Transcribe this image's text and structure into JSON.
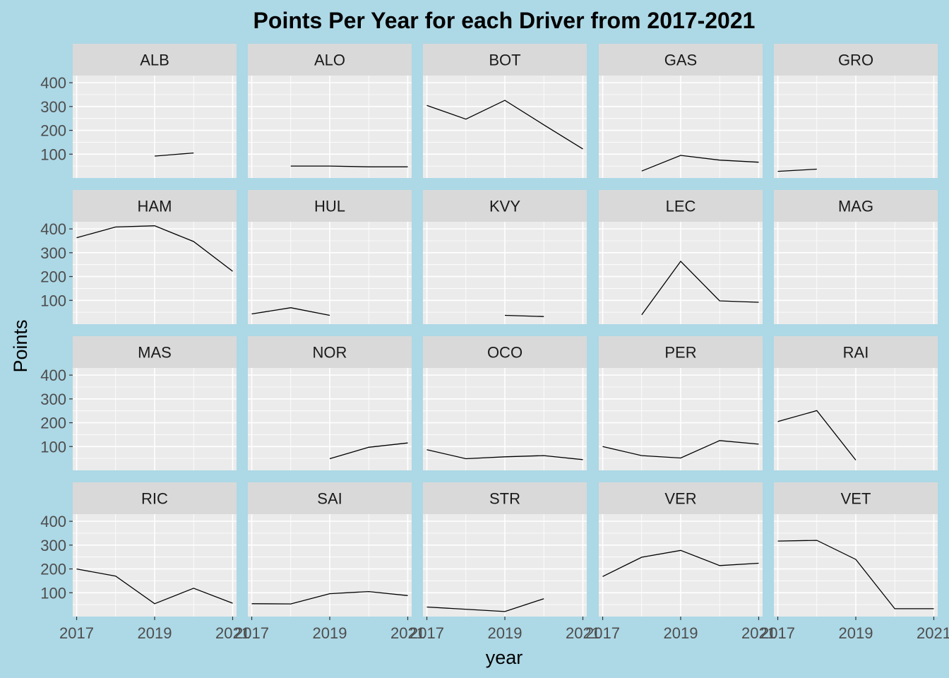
{
  "chart_data": {
    "type": "line",
    "title": "Points Per Year for each Driver from 2017-2021",
    "xlabel": "year",
    "ylabel": "Points",
    "x_ticks": [
      2017,
      2019,
      2021
    ],
    "y_ticks": [
      100,
      200,
      300,
      400
    ],
    "xlim": [
      2016.9,
      2021.1
    ],
    "ylim": [
      0,
      430
    ],
    "grid": true,
    "facets": [
      {
        "name": "ALB",
        "points": [
          [
            2019,
            92
          ],
          [
            2020,
            105
          ]
        ]
      },
      {
        "name": "ALO",
        "points": [
          [
            2018,
            50
          ],
          [
            2019,
            50
          ],
          [
            2020,
            47
          ],
          [
            2021,
            47
          ]
        ]
      },
      {
        "name": "BOT",
        "points": [
          [
            2017,
            305
          ],
          [
            2018,
            247
          ],
          [
            2019,
            326
          ],
          [
            2020,
            223
          ],
          [
            2021,
            122
          ]
        ]
      },
      {
        "name": "GAS",
        "points": [
          [
            2018,
            29
          ],
          [
            2019,
            95
          ],
          [
            2020,
            75
          ],
          [
            2021,
            66
          ]
        ]
      },
      {
        "name": "GRO",
        "points": [
          [
            2017,
            28
          ],
          [
            2018,
            37
          ]
        ]
      },
      {
        "name": "HAM",
        "points": [
          [
            2017,
            363
          ],
          [
            2018,
            408
          ],
          [
            2019,
            413
          ],
          [
            2020,
            347
          ],
          [
            2021,
            222
          ]
        ]
      },
      {
        "name": "HUL",
        "points": [
          [
            2017,
            43
          ],
          [
            2018,
            69
          ],
          [
            2019,
            37
          ]
        ]
      },
      {
        "name": "KVY",
        "points": [
          [
            2019,
            37
          ],
          [
            2020,
            32
          ]
        ]
      },
      {
        "name": "LEC",
        "points": [
          [
            2018,
            39
          ],
          [
            2019,
            264
          ],
          [
            2020,
            98
          ],
          [
            2021,
            92
          ]
        ]
      },
      {
        "name": "MAG",
        "points": []
      },
      {
        "name": "MAS",
        "points": []
      },
      {
        "name": "NOR",
        "points": [
          [
            2019,
            49
          ],
          [
            2020,
            97
          ],
          [
            2021,
            115
          ]
        ]
      },
      {
        "name": "OCO",
        "points": [
          [
            2017,
            87
          ],
          [
            2018,
            49
          ],
          [
            2019,
            57
          ],
          [
            2020,
            62
          ],
          [
            2021,
            45
          ]
        ]
      },
      {
        "name": "PER",
        "points": [
          [
            2017,
            100
          ],
          [
            2018,
            62
          ],
          [
            2019,
            52
          ],
          [
            2020,
            125
          ],
          [
            2021,
            110
          ]
        ]
      },
      {
        "name": "RAI",
        "points": [
          [
            2017,
            205
          ],
          [
            2018,
            251
          ],
          [
            2019,
            43
          ]
        ]
      },
      {
        "name": "RIC",
        "points": [
          [
            2017,
            200
          ],
          [
            2018,
            170
          ],
          [
            2019,
            54
          ],
          [
            2020,
            119
          ],
          [
            2021,
            56
          ]
        ]
      },
      {
        "name": "SAI",
        "points": [
          [
            2017,
            54
          ],
          [
            2018,
            53
          ],
          [
            2019,
            96
          ],
          [
            2020,
            105
          ],
          [
            2021,
            88
          ]
        ]
      },
      {
        "name": "STR",
        "points": [
          [
            2017,
            40
          ],
          [
            2019,
            21
          ],
          [
            2020,
            75
          ]
        ]
      },
      {
        "name": "VER",
        "points": [
          [
            2017,
            168
          ],
          [
            2018,
            249
          ],
          [
            2019,
            278
          ],
          [
            2020,
            214
          ],
          [
            2021,
            224
          ]
        ]
      },
      {
        "name": "VET",
        "points": [
          [
            2017,
            317
          ],
          [
            2018,
            320
          ],
          [
            2019,
            240
          ],
          [
            2020,
            33
          ],
          [
            2021,
            33
          ]
        ]
      }
    ]
  },
  "colors": {
    "background": "#add8e6",
    "panel": "#ebebeb",
    "strip": "#d9d9d9",
    "grid": "#ffffff",
    "line": "#000000"
  }
}
